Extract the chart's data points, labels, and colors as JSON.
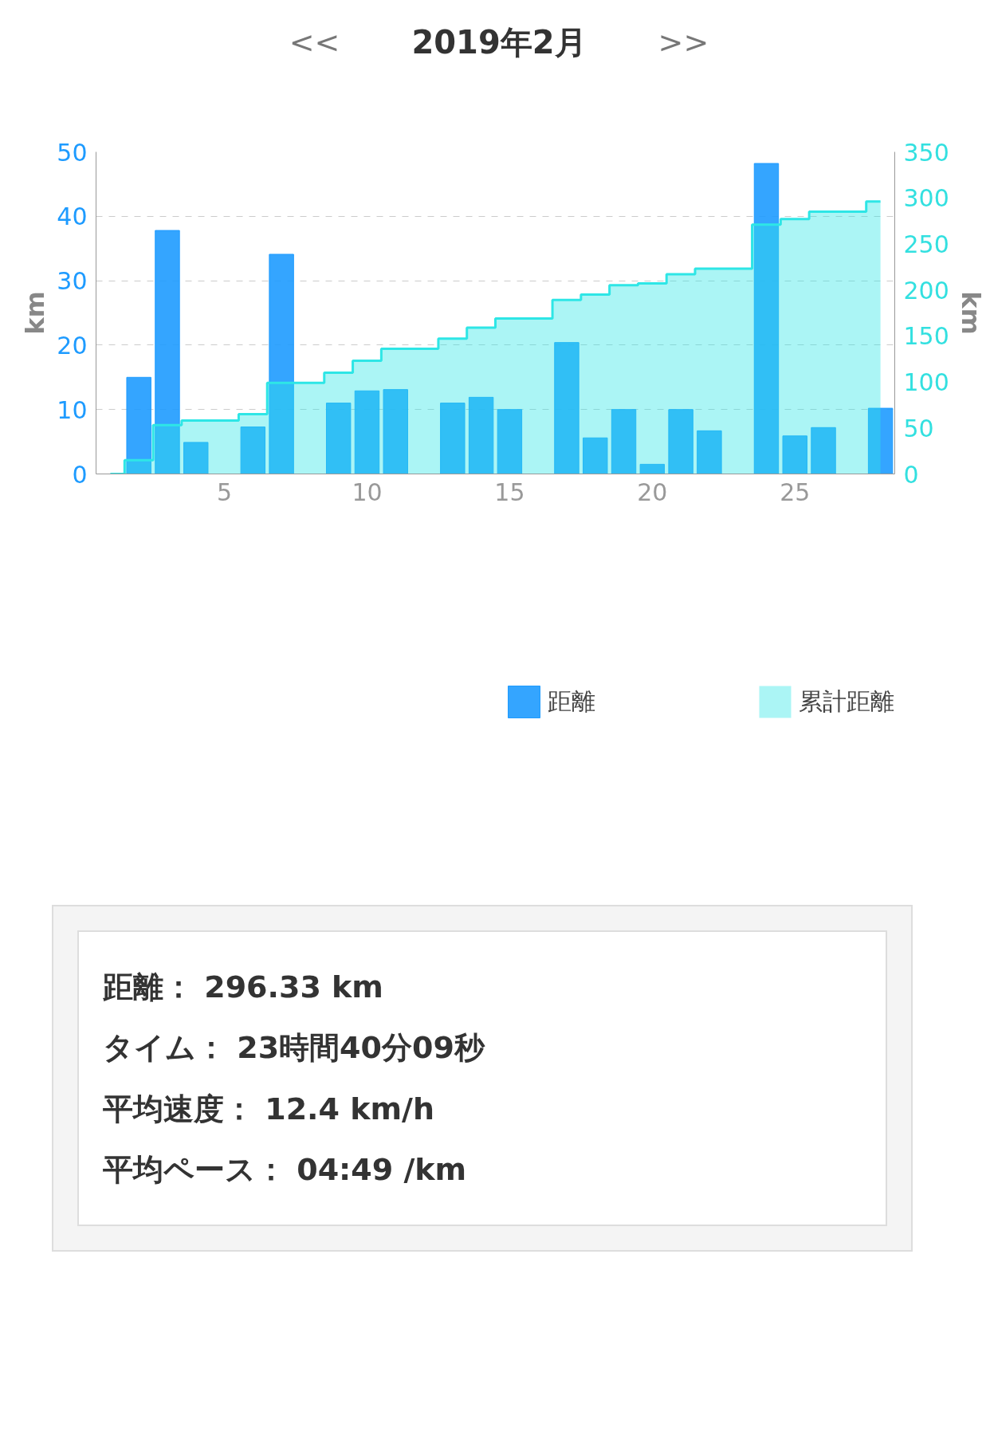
{
  "chart_data": {
    "type": "bar",
    "title": "2019年2月",
    "ylabel": "km",
    "y2label": "km",
    "x": [
      1,
      2,
      3,
      4,
      5,
      6,
      7,
      8,
      9,
      10,
      11,
      12,
      13,
      14,
      15,
      16,
      17,
      18,
      19,
      20,
      21,
      22,
      23,
      24,
      25,
      26,
      27,
      28
    ],
    "series": [
      {
        "name": "距離",
        "color": "#1e9bff",
        "values": [
          null,
          15.0,
          37.8,
          4.9,
          null,
          7.3,
          34.1,
          null,
          11.0,
          12.9,
          13.1,
          null,
          11.0,
          11.9,
          10.0,
          null,
          20.4,
          5.6,
          10.0,
          1.5,
          10.0,
          6.7,
          null,
          48.2,
          5.9,
          7.2,
          null,
          10.2
        ]
      },
      {
        "name": "累計距離",
        "type": "step",
        "axis": "y2",
        "color": "#2ee6e6",
        "values": [
          0,
          15,
          53,
          58,
          58,
          65,
          99,
          99,
          110,
          123,
          136,
          136,
          147,
          159,
          169,
          169,
          189,
          195,
          205,
          207,
          217,
          223,
          223,
          271,
          277,
          285,
          285,
          296
        ]
      }
    ],
    "xlim": [
      0.5,
      28.5
    ],
    "xticks": [
      5,
      10,
      15,
      20,
      25
    ],
    "ylim": [
      0,
      50
    ],
    "yticks": [
      0,
      10,
      20,
      30,
      40,
      50
    ],
    "y2lim": [
      0,
      350
    ],
    "y2ticks": [
      0,
      50,
      100,
      150,
      200,
      250,
      300,
      350
    ],
    "grid": "y",
    "legend": "bottom",
    "annotations": [
      "<<",
      ">>",
      "距離： 296.33 km",
      "タイム： 23時間40分09秒",
      "平均速度： 12.4 km/h",
      "平均ペース： 04:49 /km"
    ]
  }
}
